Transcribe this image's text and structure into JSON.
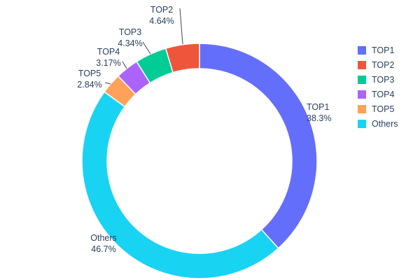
{
  "chart_data": {
    "type": "pie",
    "subtype": "donut",
    "hole_ratio": 0.79,
    "title": "",
    "categories": [
      "TOP1",
      "TOP2",
      "TOP3",
      "TOP4",
      "TOP5",
      "Others"
    ],
    "values": [
      38.3,
      4.64,
      4.34,
      3.17,
      2.84,
      46.7
    ],
    "percent_labels": [
      "38.3%",
      "4.64%",
      "4.34%",
      "3.17%",
      "2.84%",
      "46.7%"
    ],
    "colors": [
      "#636EFA",
      "#EF553B",
      "#00CC96",
      "#AB63FA",
      "#FFA15A",
      "#19D3F3"
    ],
    "display_order": [
      "TOP1",
      "Others",
      "TOP5",
      "TOP4",
      "TOP3",
      "TOP2"
    ],
    "start_angle": 0,
    "direction": "clockwise",
    "legend": {
      "position": "right",
      "entries": [
        "TOP1",
        "TOP2",
        "TOP3",
        "TOP4",
        "TOP5",
        "Others"
      ]
    },
    "text_color": "#2a3f5f",
    "background": "#ffffff"
  }
}
